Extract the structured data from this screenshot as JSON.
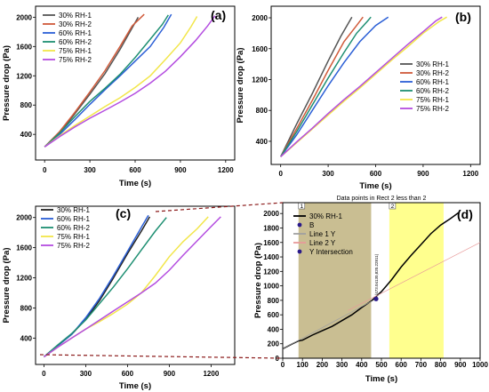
{
  "chart_data": [
    {
      "panel": "(a)",
      "type": "line",
      "ylabel": "Pressure drop (Pa)",
      "xlabel": "Time (s)",
      "xlim": [
        -60,
        1260
      ],
      "ylim": [
        50,
        2150
      ],
      "xticks": [
        0,
        300,
        600,
        900,
        1200
      ],
      "yticks": [
        400,
        800,
        1200,
        1600,
        2000
      ],
      "legend_position": "top-left",
      "series": [
        {
          "name": "30% RH-1",
          "color": "#555555",
          "points": [
            [
              0,
              230
            ],
            [
              100,
              420
            ],
            [
              200,
              680
            ],
            [
              300,
              950
            ],
            [
              400,
              1230
            ],
            [
              500,
              1560
            ],
            [
              560,
              1780
            ],
            [
              620,
              2000
            ]
          ]
        },
        {
          "name": "30% RH-2",
          "color": "#d05a3a",
          "points": [
            [
              0,
              230
            ],
            [
              100,
              440
            ],
            [
              200,
              700
            ],
            [
              300,
              980
            ],
            [
              400,
              1270
            ],
            [
              500,
              1600
            ],
            [
              580,
              1880
            ],
            [
              660,
              2040
            ]
          ]
        },
        {
          "name": "60% RH-1",
          "color": "#2b5fd6",
          "points": [
            [
              0,
              230
            ],
            [
              100,
              400
            ],
            [
              200,
              600
            ],
            [
              300,
              810
            ],
            [
              400,
              1010
            ],
            [
              500,
              1200
            ],
            [
              600,
              1400
            ],
            [
              700,
              1600
            ],
            [
              790,
              1860
            ],
            [
              840,
              2040
            ]
          ]
        },
        {
          "name": "60% RH-2",
          "color": "#1e8f72",
          "points": [
            [
              0,
              230
            ],
            [
              100,
              420
            ],
            [
              200,
              640
            ],
            [
              300,
              850
            ],
            [
              400,
              1030
            ],
            [
              500,
              1220
            ],
            [
              600,
              1450
            ],
            [
              700,
              1700
            ],
            [
              780,
              1900
            ],
            [
              820,
              2030
            ]
          ]
        },
        {
          "name": "75% RH-1",
          "color": "#f2e64a",
          "points": [
            [
              0,
              230
            ],
            [
              100,
              380
            ],
            [
              200,
              520
            ],
            [
              300,
              650
            ],
            [
              400,
              780
            ],
            [
              500,
              900
            ],
            [
              600,
              1040
            ],
            [
              700,
              1200
            ],
            [
              800,
              1420
            ],
            [
              900,
              1650
            ],
            [
              970,
              1870
            ],
            [
              1010,
              2010
            ]
          ]
        },
        {
          "name": "75% RH-2",
          "color": "#b44de0",
          "points": [
            [
              0,
              230
            ],
            [
              100,
              370
            ],
            [
              200,
              500
            ],
            [
              300,
              620
            ],
            [
              400,
              730
            ],
            [
              500,
              840
            ],
            [
              600,
              960
            ],
            [
              700,
              1100
            ],
            [
              800,
              1260
            ],
            [
              900,
              1460
            ],
            [
              1000,
              1680
            ],
            [
              1080,
              1880
            ],
            [
              1130,
              2020
            ]
          ]
        }
      ]
    },
    {
      "panel": "(b)",
      "type": "line",
      "ylabel": "Pressure drop (Pa)",
      "xlabel": "Time (s)",
      "xlim": [
        -60,
        1260
      ],
      "ylim": [
        100,
        2150
      ],
      "xticks": [
        0,
        300,
        600,
        900,
        1200
      ],
      "yticks": [
        400,
        800,
        1200,
        1600,
        2000
      ],
      "legend_position": "center-right",
      "series": [
        {
          "name": "30% RH-1",
          "color": "#555555",
          "points": [
            [
              0,
              200
            ],
            [
              100,
              620
            ],
            [
              200,
              1020
            ],
            [
              300,
              1440
            ],
            [
              380,
              1760
            ],
            [
              450,
              2010
            ]
          ]
        },
        {
          "name": "30% RH-2",
          "color": "#d05a3a",
          "points": [
            [
              0,
              200
            ],
            [
              100,
              560
            ],
            [
              200,
              930
            ],
            [
              300,
              1320
            ],
            [
              400,
              1690
            ],
            [
              480,
              1900
            ],
            [
              520,
              2010
            ]
          ]
        },
        {
          "name": "60% RH-1",
          "color": "#2b5fd6",
          "points": [
            [
              0,
              200
            ],
            [
              100,
              480
            ],
            [
              200,
              800
            ],
            [
              300,
              1120
            ],
            [
              400,
              1420
            ],
            [
              500,
              1690
            ],
            [
              600,
              1900
            ],
            [
              680,
              2010
            ]
          ]
        },
        {
          "name": "60% RH-2",
          "color": "#1e8f72",
          "points": [
            [
              0,
              200
            ],
            [
              100,
              520
            ],
            [
              200,
              870
            ],
            [
              300,
              1220
            ],
            [
              400,
              1550
            ],
            [
              480,
              1800
            ],
            [
              550,
              1960
            ],
            [
              570,
              2010
            ]
          ]
        },
        {
          "name": "75% RH-1",
          "color": "#f2e64a",
          "points": [
            [
              0,
              200
            ],
            [
              100,
              380
            ],
            [
              200,
              560
            ],
            [
              300,
              740
            ],
            [
              400,
              920
            ],
            [
              500,
              1090
            ],
            [
              600,
              1270
            ],
            [
              700,
              1450
            ],
            [
              800,
              1620
            ],
            [
              900,
              1800
            ],
            [
              1000,
              1950
            ],
            [
              1050,
              2010
            ]
          ]
        },
        {
          "name": "75% RH-2",
          "color": "#b44de0",
          "points": [
            [
              0,
              200
            ],
            [
              100,
              390
            ],
            [
              200,
              570
            ],
            [
              300,
              760
            ],
            [
              400,
              940
            ],
            [
              500,
              1110
            ],
            [
              600,
              1290
            ],
            [
              700,
              1470
            ],
            [
              800,
              1650
            ],
            [
              900,
              1820
            ],
            [
              980,
              1960
            ],
            [
              1020,
              2010
            ]
          ]
        }
      ]
    },
    {
      "panel": "(c)",
      "type": "line",
      "ylabel": "Pressure drop (Pa)",
      "xlabel": "Time (s)",
      "xlim": [
        -60,
        1370
      ],
      "ylim": [
        50,
        2150
      ],
      "xticks": [
        0,
        300,
        600,
        900,
        1200
      ],
      "yticks": [
        400,
        800,
        1200,
        1600,
        2000
      ],
      "legend_position": "top-left",
      "series": [
        {
          "name": "30% RH-1",
          "color": "#222222",
          "points": [
            [
              0,
              150
            ],
            [
              100,
              300
            ],
            [
              200,
              450
            ],
            [
              300,
              650
            ],
            [
              400,
              900
            ],
            [
              500,
              1200
            ],
            [
              600,
              1520
            ],
            [
              700,
              1820
            ],
            [
              760,
              2010
            ]
          ]
        },
        {
          "name": "60% RH-1",
          "color": "#2b5fd6",
          "points": [
            [
              0,
              150
            ],
            [
              100,
              300
            ],
            [
              200,
              450
            ],
            [
              300,
              670
            ],
            [
              400,
              930
            ],
            [
              500,
              1230
            ],
            [
              600,
              1550
            ],
            [
              700,
              1870
            ],
            [
              750,
              2030
            ]
          ]
        },
        {
          "name": "60% RH-2",
          "color": "#1e8f72",
          "points": [
            [
              0,
              150
            ],
            [
              100,
              310
            ],
            [
              200,
              460
            ],
            [
              300,
              640
            ],
            [
              400,
              860
            ],
            [
              500,
              1080
            ],
            [
              600,
              1320
            ],
            [
              700,
              1570
            ],
            [
              800,
              1820
            ],
            [
              880,
              2000
            ]
          ]
        },
        {
          "name": "75% RH-1",
          "color": "#f2e64a",
          "points": [
            [
              0,
              150
            ],
            [
              100,
              280
            ],
            [
              200,
              400
            ],
            [
              300,
              520
            ],
            [
              400,
              620
            ],
            [
              500,
              730
            ],
            [
              600,
              850
            ],
            [
              700,
              1000
            ],
            [
              800,
              1230
            ],
            [
              900,
              1480
            ],
            [
              1000,
              1680
            ],
            [
              1100,
              1850
            ],
            [
              1180,
              2010
            ]
          ]
        },
        {
          "name": "75% RH-2",
          "color": "#b44de0",
          "points": [
            [
              0,
              150
            ],
            [
              100,
              280
            ],
            [
              200,
              400
            ],
            [
              300,
              520
            ],
            [
              400,
              640
            ],
            [
              500,
              760
            ],
            [
              600,
              880
            ],
            [
              700,
              1000
            ],
            [
              800,
              1130
            ],
            [
              900,
              1300
            ],
            [
              1000,
              1500
            ],
            [
              1100,
              1690
            ],
            [
              1200,
              1880
            ],
            [
              1270,
              2010
            ]
          ]
        }
      ]
    },
    {
      "panel": "(d)",
      "type": "line",
      "title": "Data points in Rect 2 less than 2",
      "ylabel": "Pressure drop (Pa)",
      "xlabel": "Time (s)",
      "xlim": [
        0,
        1000
      ],
      "ylim": [
        0,
        2150
      ],
      "xticks": [
        0,
        100,
        200,
        300,
        400,
        500,
        600,
        700,
        800,
        900,
        1000
      ],
      "yticks": [
        0,
        200,
        400,
        600,
        800,
        1000,
        1200,
        1400,
        1600,
        1800,
        2000
      ],
      "legend_position": "top-left",
      "rects": [
        {
          "label": "1",
          "x0": 80,
          "x1": 448,
          "color": "#bfb37f"
        },
        {
          "label": "2",
          "x0": 540,
          "x1": 815,
          "color": "#ffff7a"
        }
      ],
      "intersection_label": "(473.04130,820.22811)",
      "intersection_point": [
        473,
        820
      ],
      "series": [
        {
          "name": "30% RH-1",
          "color": "#000000",
          "points": [
            [
              0,
              130
            ],
            [
              50,
              200
            ],
            [
              80,
              240
            ],
            [
              100,
              250
            ],
            [
              150,
              320
            ],
            [
              200,
              380
            ],
            [
              250,
              440
            ],
            [
              300,
              520
            ],
            [
              350,
              600
            ],
            [
              400,
              700
            ],
            [
              448,
              790
            ],
            [
              500,
              920
            ],
            [
              550,
              1080
            ],
            [
              600,
              1260
            ],
            [
              650,
              1420
            ],
            [
              700,
              1570
            ],
            [
              750,
              1720
            ],
            [
              800,
              1840
            ],
            [
              850,
              1930
            ],
            [
              890,
              2010
            ]
          ]
        },
        {
          "name": "B",
          "color": "#2a1a8a",
          "marker": true
        },
        {
          "name": "Line 1 Y",
          "color": "#a0a0a0",
          "points": [
            [
              0,
              130
            ],
            [
              473,
              820
            ]
          ]
        },
        {
          "name": "Line 2 Y",
          "color": "#e89a9a",
          "points": [
            [
              330,
              660
            ],
            [
              1000,
              1600
            ]
          ]
        },
        {
          "name": "Y Intersection",
          "color": "#2a1a8a",
          "marker": true
        }
      ]
    }
  ]
}
